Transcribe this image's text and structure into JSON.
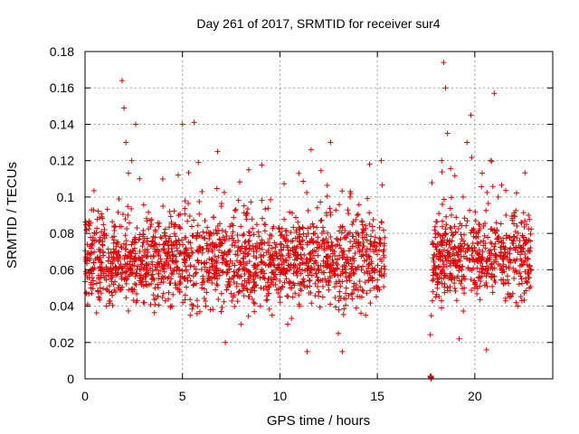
{
  "chart_data": {
    "type": "scatter",
    "title": "Day 261 of 2017, SRMTID for receiver sur4",
    "xlabel": "GPS time / hours",
    "ylabel": "SRMTID / TECUs",
    "xlim": [
      0,
      24
    ],
    "ylim": [
      0,
      0.18
    ],
    "grid": true,
    "marker": "+",
    "color": "#e00000",
    "xticks": [
      0,
      5,
      10,
      15,
      20
    ],
    "xtick_labels": [
      "0",
      "5",
      "10",
      "15",
      "20"
    ],
    "yticks": [
      0,
      0.02,
      0.04,
      0.06,
      0.08,
      0.1,
      0.12,
      0.14,
      0.16,
      0.18
    ],
    "ytick_labels": [
      "0",
      "0.02",
      "0.04",
      "0.06",
      "0.08",
      "0.1",
      "0.12",
      "0.14",
      "0.16",
      "0.18"
    ],
    "segments": [
      {
        "x_start": 0.0,
        "x_end": 15.4,
        "typical_range": [
          0.03,
          0.09
        ]
      },
      {
        "x_start": 17.7,
        "x_end": 17.8,
        "typical_range": [
          0.0,
          0.002
        ]
      },
      {
        "x_start": 17.8,
        "x_end": 22.9,
        "typical_range": [
          0.035,
          0.09
        ]
      }
    ],
    "points": [
      [
        0.1,
        0.065
      ],
      [
        0.3,
        0.05
      ],
      [
        0.5,
        0.08
      ],
      [
        0.7,
        0.045
      ],
      [
        0.9,
        0.06
      ],
      [
        1.1,
        0.04
      ],
      [
        1.3,
        0.055
      ],
      [
        1.5,
        0.07
      ],
      [
        1.7,
        0.05
      ],
      [
        1.9,
        0.164
      ],
      [
        2.0,
        0.149
      ],
      [
        2.1,
        0.13
      ],
      [
        2.2,
        0.09
      ],
      [
        2.4,
        0.12
      ],
      [
        2.6,
        0.14
      ],
      [
        2.8,
        0.11
      ],
      [
        3.0,
        0.075
      ],
      [
        3.2,
        0.06
      ],
      [
        3.4,
        0.085
      ],
      [
        3.6,
        0.05
      ],
      [
        3.8,
        0.07
      ],
      [
        4.0,
        0.095
      ],
      [
        4.2,
        0.065
      ],
      [
        4.4,
        0.04
      ],
      [
        4.6,
        0.075
      ],
      [
        4.8,
        0.09
      ],
      [
        5.0,
        0.14
      ],
      [
        5.2,
        0.06
      ],
      [
        5.4,
        0.035
      ],
      [
        5.6,
        0.141
      ],
      [
        5.8,
        0.07
      ],
      [
        6.0,
        0.05
      ],
      [
        6.2,
        0.04
      ],
      [
        6.4,
        0.06
      ],
      [
        6.6,
        0.08
      ],
      [
        6.8,
        0.125
      ],
      [
        7.0,
        0.095
      ],
      [
        7.2,
        0.02
      ],
      [
        7.4,
        0.055
      ],
      [
        7.6,
        0.045
      ],
      [
        7.8,
        0.065
      ],
      [
        8.0,
        0.03
      ],
      [
        8.2,
        0.075
      ],
      [
        8.4,
        0.115
      ],
      [
        8.6,
        0.05
      ],
      [
        8.8,
        0.07
      ],
      [
        9.0,
        0.04
      ],
      [
        9.2,
        0.085
      ],
      [
        9.4,
        0.055
      ],
      [
        9.6,
        0.035
      ],
      [
        9.8,
        0.06
      ],
      [
        10.0,
        0.045
      ],
      [
        10.2,
        0.065
      ],
      [
        10.4,
        0.03
      ],
      [
        10.6,
        0.05
      ],
      [
        10.8,
        0.07
      ],
      [
        11.0,
        0.04
      ],
      [
        11.2,
        0.055
      ],
      [
        11.4,
        0.015
      ],
      [
        11.6,
        0.126
      ],
      [
        11.8,
        0.08
      ],
      [
        12.0,
        0.06
      ],
      [
        12.2,
        0.045
      ],
      [
        12.4,
        0.09
      ],
      [
        12.6,
        0.13
      ],
      [
        12.8,
        0.07
      ],
      [
        13.0,
        0.025
      ],
      [
        13.2,
        0.015
      ],
      [
        13.4,
        0.05
      ],
      [
        13.6,
        0.1
      ],
      [
        13.8,
        0.065
      ],
      [
        14.0,
        0.08
      ],
      [
        14.2,
        0.045
      ],
      [
        14.4,
        0.035
      ],
      [
        14.6,
        0.118
      ],
      [
        14.8,
        0.06
      ],
      [
        15.0,
        0.05
      ],
      [
        15.2,
        0.12
      ],
      [
        15.3,
        0.07
      ],
      [
        17.75,
        0.0
      ],
      [
        17.75,
        0.001
      ],
      [
        17.9,
        0.06
      ],
      [
        18.0,
        0.045
      ],
      [
        18.1,
        0.08
      ],
      [
        18.2,
        0.07
      ],
      [
        18.3,
        0.12
      ],
      [
        18.4,
        0.174
      ],
      [
        18.5,
        0.16
      ],
      [
        18.6,
        0.135
      ],
      [
        18.8,
        0.09
      ],
      [
        19.0,
        0.065
      ],
      [
        19.2,
        0.022
      ],
      [
        19.4,
        0.1
      ],
      [
        19.6,
        0.13
      ],
      [
        19.8,
        0.145
      ],
      [
        20.0,
        0.05
      ],
      [
        20.2,
        0.085
      ],
      [
        20.4,
        0.07
      ],
      [
        20.6,
        0.016
      ],
      [
        20.8,
        0.12
      ],
      [
        21.0,
        0.157
      ],
      [
        21.2,
        0.1
      ],
      [
        21.4,
        0.06
      ],
      [
        21.6,
        0.09
      ],
      [
        21.8,
        0.045
      ],
      [
        22.0,
        0.072
      ],
      [
        22.2,
        0.04
      ],
      [
        22.4,
        0.055
      ],
      [
        22.6,
        0.065
      ],
      [
        22.8,
        0.05
      ]
    ]
  }
}
